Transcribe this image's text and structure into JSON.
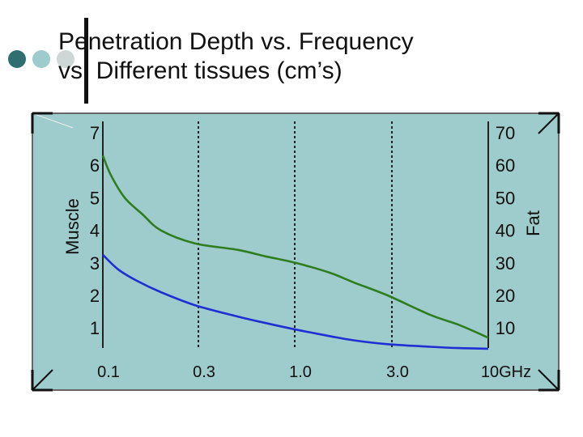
{
  "chart_data": {
    "type": "line",
    "title": "Penetration Depth vs. Frequency",
    "subtitle": "vs. Different tissues (cm’s)",
    "ylabel_left": "Muscle",
    "ylabel_right": "Fat",
    "x_ticks": [
      "0.1",
      "0.3",
      "1.0",
      "3.0",
      "10GHz"
    ],
    "y_left_ticks": [
      "7",
      "6",
      "5",
      "4",
      "3",
      "2",
      "1"
    ],
    "y_right_ticks": [
      "70",
      "60",
      "50",
      "40",
      "30",
      "20",
      "10"
    ],
    "x_scale": "log",
    "xlim": [
      0.1,
      10
    ],
    "ylim_left": [
      0.3,
      7
    ],
    "ylim_right": [
      3,
      70
    ],
    "grid": "vertical dashed",
    "colors": {
      "plot_bg": "#9ecbcb",
      "muscle": "#1f2fd4",
      "fat": "#2e7d1f"
    },
    "series": [
      {
        "axis": "left",
        "color": "#1f2fd4",
        "x": [
          0.1,
          0.12,
          0.15,
          0.2,
          0.3,
          0.5,
          0.7,
          1.0,
          1.5,
          2.0,
          3.0,
          5.0,
          7.0,
          10.0
        ],
        "y": [
          3.25,
          2.8,
          2.45,
          2.1,
          1.7,
          1.35,
          1.15,
          0.95,
          0.75,
          0.62,
          0.5,
          0.42,
          0.38,
          0.36
        ]
      },
      {
        "axis": "right",
        "color": "#2e7d1f",
        "x": [
          0.1,
          0.11,
          0.13,
          0.16,
          0.2,
          0.3,
          0.5,
          0.7,
          1.0,
          1.5,
          2.0,
          3.0,
          5.0,
          7.0,
          10.0
        ],
        "y": [
          63,
          57,
          50,
          45,
          40,
          36,
          34,
          32,
          30,
          27,
          24,
          20,
          14,
          11,
          7
        ]
      }
    ]
  },
  "decor": {
    "dot_colors": [
      "#2f6f70",
      "#9ecbcb",
      "#cfd6d6"
    ]
  }
}
